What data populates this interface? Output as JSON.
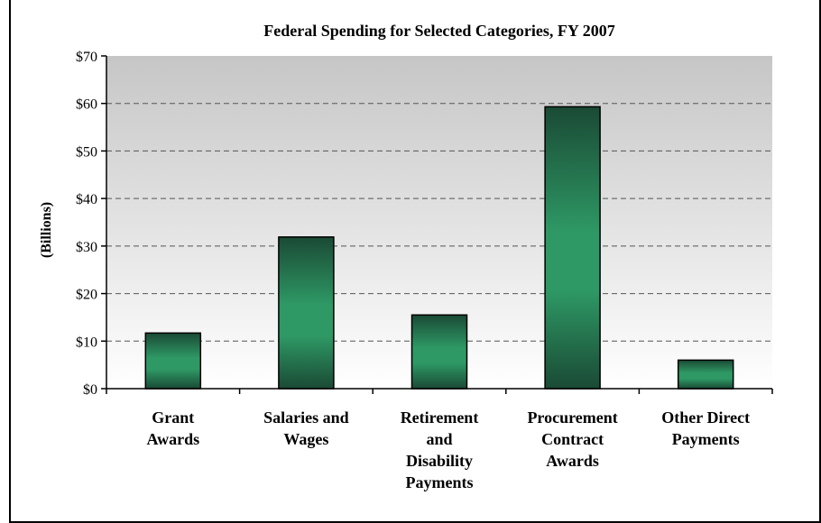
{
  "chart_data": {
    "type": "bar",
    "title": "Federal Spending for Selected Categories, FY 2007",
    "ylabel": "(Billions)",
    "xlabel": "",
    "categories": [
      [
        "Grant",
        "Awards"
      ],
      [
        "Salaries and",
        "Wages"
      ],
      [
        "Retirement",
        "and",
        "Disability",
        "Payments"
      ],
      [
        "Procurement",
        "Contract",
        "Awards"
      ],
      [
        "Other Direct",
        "Payments"
      ]
    ],
    "values": [
      11.7,
      31.9,
      15.5,
      59.3,
      6.0
    ],
    "ylim": [
      0,
      70
    ],
    "y_ticks": [
      0,
      10,
      20,
      30,
      40,
      50,
      60,
      70
    ],
    "y_tick_labels": [
      "$0",
      "$10",
      "$20",
      "$30",
      "$40",
      "$50",
      "$60",
      "$70"
    ],
    "grid": true,
    "legend": "none",
    "colors": {
      "bar_dark": "#1a4a35",
      "bar_light": "#2e9965",
      "plot_top": "#c6c6c6",
      "plot_bottom": "#ffffff",
      "grid": "#555555"
    }
  }
}
